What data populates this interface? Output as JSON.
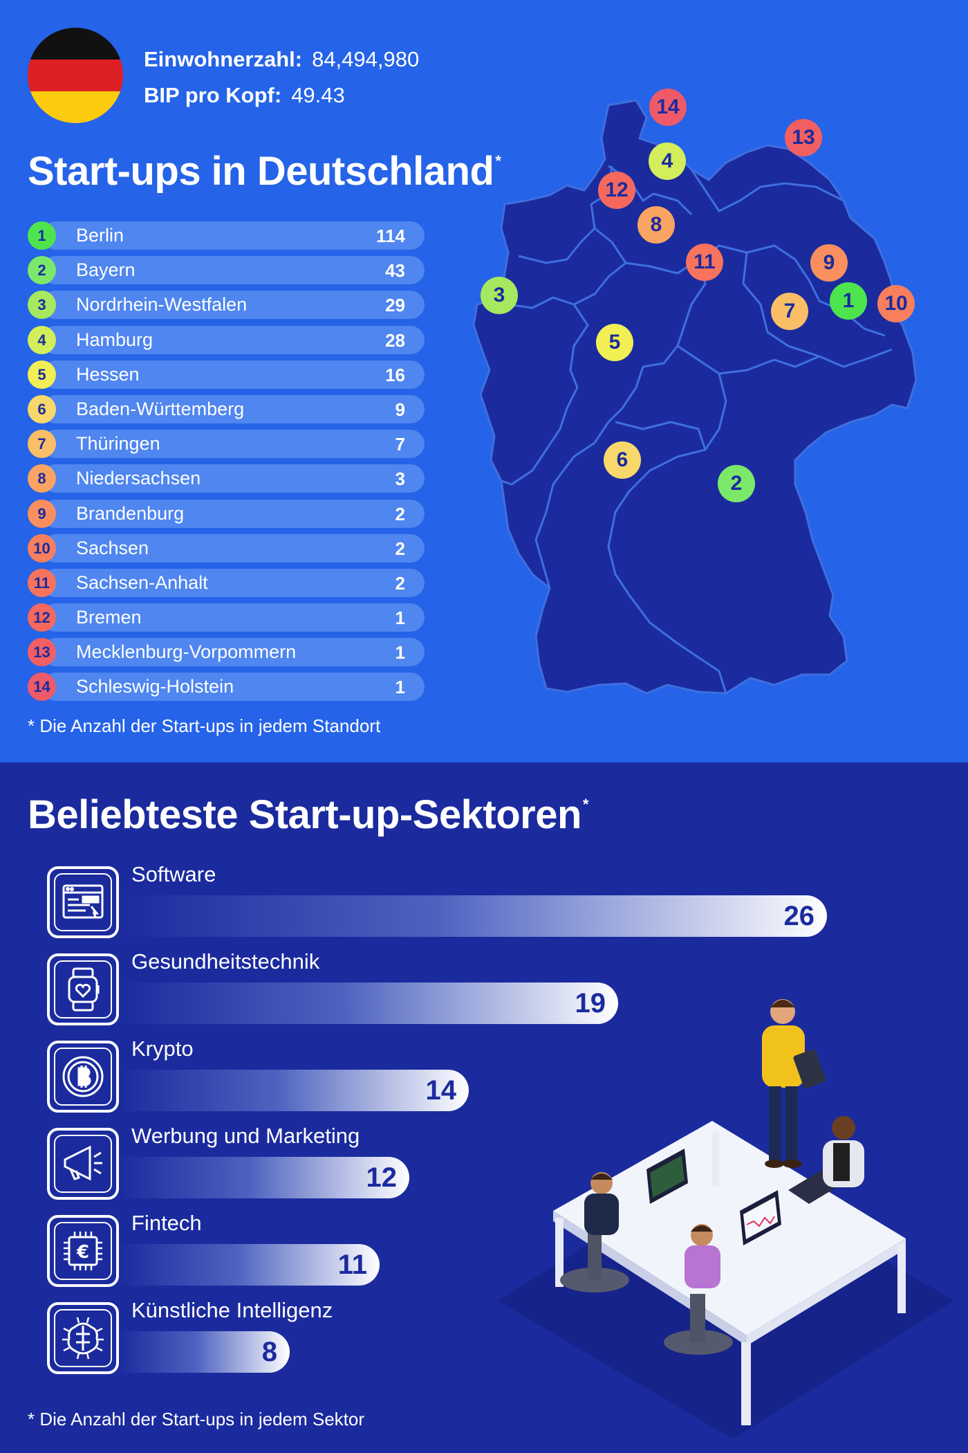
{
  "country": {
    "flag_colors": [
      "#111111",
      "#dd1f26",
      "#fccb0e"
    ],
    "population_label": "Einwohnerzahl:",
    "population_value": "84,494,980",
    "gdp_label": "BIP pro Kopf:",
    "gdp_value": "49.43"
  },
  "startups": {
    "title": "Start-ups in Deutschland",
    "title_mark": "*",
    "items": [
      {
        "rank": "1",
        "name": "Berlin",
        "count": "114",
        "color": "#4ee44e"
      },
      {
        "rank": "2",
        "name": "Bayern",
        "count": "43",
        "color": "#7be86a"
      },
      {
        "rank": "3",
        "name": "Nordrhein-Westfalen",
        "count": "29",
        "color": "#a6e85f"
      },
      {
        "rank": "4",
        "name": "Hamburg",
        "count": "28",
        "color": "#d2ee5a"
      },
      {
        "rank": "5",
        "name": "Hessen",
        "count": "16",
        "color": "#f1ef55"
      },
      {
        "rank": "6",
        "name": "Baden-Württemberg",
        "count": "9",
        "color": "#f8d86a"
      },
      {
        "rank": "7",
        "name": "Thüringen",
        "count": "7",
        "color": "#f9be66"
      },
      {
        "rank": "8",
        "name": "Niedersachsen",
        "count": "3",
        "color": "#f9a462"
      },
      {
        "rank": "9",
        "name": "Brandenburg",
        "count": "2",
        "color": "#f98f5f"
      },
      {
        "rank": "10",
        "name": "Sachsen",
        "count": "2",
        "color": "#f87f5d"
      },
      {
        "rank": "11",
        "name": "Sachsen-Anhalt",
        "count": "2",
        "color": "#f7735d"
      },
      {
        "rank": "12",
        "name": "Bremen",
        "count": "1",
        "color": "#f5685e"
      },
      {
        "rank": "13",
        "name": "Mecklenburg-Vorpommern",
        "count": "1",
        "color": "#f25f63"
      },
      {
        "rank": "14",
        "name": "Schleswig-Holstein",
        "count": "1",
        "color": "#ee5a68"
      }
    ],
    "footnote": "* Die Anzahl der Start-ups in jedem Standort"
  },
  "sectors": {
    "title": "Beliebteste Start-up-Sektoren",
    "title_mark": "*",
    "items": [
      {
        "name": "Software",
        "value": 26,
        "icon": "browser-window-icon"
      },
      {
        "name": "Gesundheitstechnik",
        "value": 19,
        "icon": "smartwatch-icon"
      },
      {
        "name": "Krypto",
        "value": 14,
        "icon": "bitcoin-icon"
      },
      {
        "name": "Werbung und Marketing",
        "value": 12,
        "icon": "megaphone-icon"
      },
      {
        "name": "Fintech",
        "value": 11,
        "icon": "euro-chip-icon"
      },
      {
        "name": "Künstliche Intelligenz",
        "value": 8,
        "icon": "ai-brain-chip-icon"
      }
    ],
    "footnote": "* Die Anzahl der Start-ups in jedem Sektor"
  }
}
